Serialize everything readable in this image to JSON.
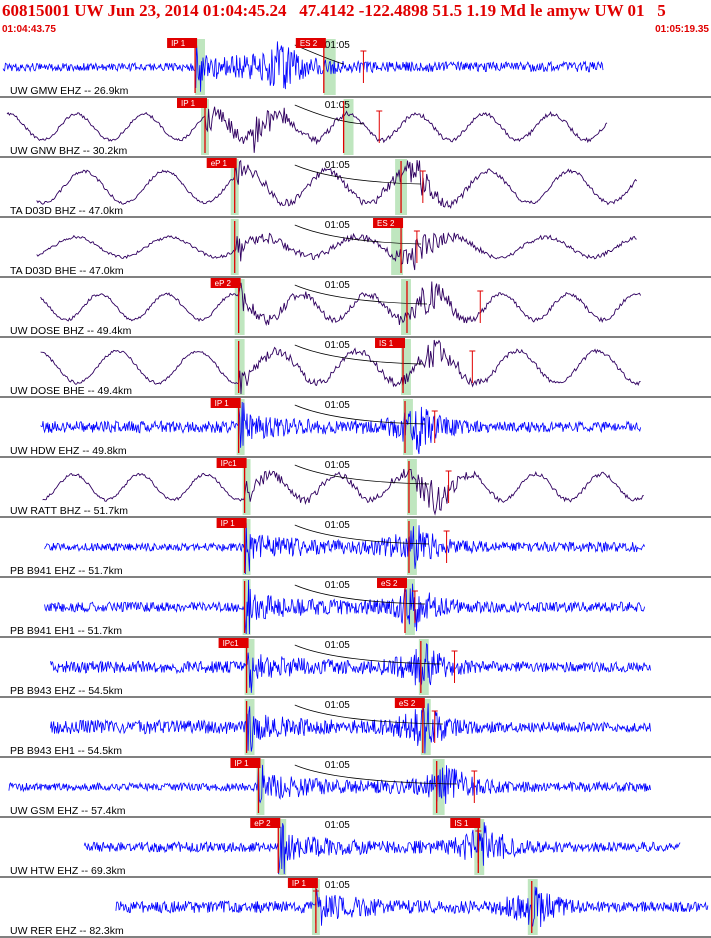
{
  "header": {
    "title": "60815001 UW Jun 23, 2014 01:04:45.24   47.4142 -122.4898 51.5 1.19 Md le amyw UW 01   5",
    "start_time": "01:04:43.75",
    "end_time": "01:05:19.35"
  },
  "colors": {
    "red": "#e00000",
    "blue": "#0000ff",
    "dark": "#300060",
    "green": "#bfe6bf",
    "panel_border": "#000000"
  },
  "chart_data": {
    "type": "line",
    "tick_label": "01:05",
    "x_unit": "seconds after 01:04:43.75",
    "x_range": [
      0,
      35.6
    ],
    "tick_time_s": 16.25,
    "channels": [
      {
        "label": "UW GMW EHZ -- 26.9km",
        "color": "blue",
        "style": "hf",
        "trace": [
          0,
          30.3
        ],
        "p_pick": "IP 1",
        "p_time": 9.7,
        "s_pick": "ES 2",
        "s_time": 16.2,
        "p_green": [
          9.7,
          10.2
        ],
        "s_green": [
          16.2,
          16.8
        ],
        "amp_mark": 18.2,
        "event_center": 14.0
      },
      {
        "label": "UW GNW BHZ -- 30.2km",
        "color": "dark",
        "style": "lf",
        "trace": [
          0.2,
          30.5
        ],
        "p_pick": "IP 1",
        "p_time": 10.2,
        "s_pick": "",
        "s_time": 17.2,
        "p_green": [
          10.0,
          10.4
        ],
        "s_green": [
          17.2,
          17.7
        ],
        "amp_mark": 19.0,
        "event_center": 13.0
      },
      {
        "label": "TA D03D BHZ -- 47.0km",
        "color": "dark",
        "style": "lf",
        "trace": [
          1.7,
          32.0
        ],
        "p_pick": "eP 1",
        "p_time": 11.7,
        "s_pick": "",
        "s_time": 20.1,
        "p_green": [
          11.5,
          11.9
        ],
        "s_green": [
          19.8,
          20.4
        ],
        "amp_mark": 21.2,
        "event_center": 20.9
      },
      {
        "label": "TA D03D BHE -- 47.0km",
        "color": "dark",
        "style": "lf",
        "trace": [
          1.7,
          32.0
        ],
        "p_pick": "",
        "p_time": 11.7,
        "s_pick": "ES 2",
        "s_time": 20.1,
        "p_green": [
          11.5,
          11.9
        ],
        "s_green": [
          19.6,
          20.2
        ],
        "amp_mark": 20.9,
        "event_center": 21.0
      },
      {
        "label": "UW DOSE BHZ -- 49.4km",
        "color": "dark",
        "style": "lf",
        "trace": [
          1.9,
          32.2
        ],
        "p_pick": "eP 2",
        "p_time": 11.9,
        "s_pick": "",
        "s_time": 20.4,
        "p_green": [
          11.7,
          12.2
        ],
        "s_green": [
          20.1,
          20.6
        ],
        "amp_mark": 24.1,
        "event_center": 21.5
      },
      {
        "label": "UW DOSE BHE -- 49.4km",
        "color": "dark",
        "style": "lf",
        "trace": [
          1.9,
          32.2
        ],
        "p_pick": "",
        "p_time": 11.9,
        "s_pick": "IS 1",
        "s_time": 20.2,
        "p_green": [
          11.7,
          12.2
        ],
        "s_green": [
          20.1,
          20.6
        ],
        "amp_mark": 23.7,
        "event_center": 21.8
      },
      {
        "label": "UW HDW EHZ -- 49.8km",
        "color": "blue",
        "style": "hf",
        "trace": [
          1.9,
          32.2
        ],
        "p_pick": "IP 1",
        "p_time": 11.9,
        "s_pick": "",
        "s_time": 20.3,
        "p_green": [
          11.8,
          12.2
        ],
        "s_green": [
          20.2,
          20.7
        ],
        "amp_mark": 21.8,
        "event_center": 21.0
      },
      {
        "label": "UW RATT BHZ -- 51.7km",
        "color": "dark",
        "style": "lf",
        "trace": [
          2.0,
          32.4
        ],
        "p_pick": "IPc1",
        "p_time": 12.2,
        "s_pick": "",
        "s_time": 20.5,
        "p_green": [
          12.1,
          12.5
        ],
        "s_green": [
          20.4,
          20.9
        ],
        "amp_mark": 22.5,
        "event_center": 21.6
      },
      {
        "label": "PB B941 EHZ -- 51.7km",
        "color": "blue",
        "style": "hf",
        "trace": [
          2.1,
          32.4
        ],
        "p_pick": "IP 1",
        "p_time": 12.2,
        "s_pick": "",
        "s_time": 20.5,
        "p_green": [
          12.1,
          12.5
        ],
        "s_green": [
          20.4,
          20.9
        ],
        "amp_mark": 22.4,
        "event_center": 20.8
      },
      {
        "label": "PB B941 EH1 -- 51.7km",
        "color": "blue",
        "style": "hf",
        "trace": [
          2.1,
          32.4
        ],
        "p_pick": "",
        "p_time": 12.2,
        "s_pick": "eS 2",
        "s_time": 20.3,
        "p_green": [
          12.1,
          12.5
        ],
        "s_green": [
          20.3,
          20.8
        ],
        "amp_mark": 20.8,
        "event_center": 20.8
      },
      {
        "label": "PB B943 EHZ -- 54.5km",
        "color": "blue",
        "style": "hf",
        "trace": [
          2.4,
          32.7
        ],
        "p_pick": "IPc1",
        "p_time": 12.3,
        "s_pick": "",
        "s_time": 21.1,
        "p_green": [
          12.2,
          12.7
        ],
        "s_green": [
          21.0,
          21.5
        ],
        "amp_mark": 22.8,
        "event_center": 21.2
      },
      {
        "label": "PB B943 EH1 -- 54.5km",
        "color": "blue",
        "style": "hf",
        "trace": [
          2.4,
          32.7
        ],
        "p_pick": "",
        "p_time": 12.3,
        "s_pick": "eS 2",
        "s_time": 21.2,
        "p_green": [
          12.2,
          12.7
        ],
        "s_green": [
          21.1,
          21.6
        ],
        "amp_mark": 21.8,
        "event_center": 21.3
      },
      {
        "label": "UW GSM EHZ -- 57.4km",
        "color": "blue",
        "style": "hf",
        "trace": [
          0.3,
          32.7
        ],
        "p_pick": "IP 1",
        "p_time": 12.9,
        "s_pick": "",
        "s_time": 21.9,
        "p_green": [
          12.8,
          13.2
        ],
        "s_green": [
          21.7,
          22.3
        ],
        "amp_mark": 23.8,
        "event_center": 22.5
      },
      {
        "label": "UW HTW EHZ -- 69.3km",
        "color": "blue",
        "style": "hf",
        "trace": [
          4.1,
          34.2
        ],
        "p_pick": "eP 2",
        "p_time": 13.9,
        "s_pick": "IS 1",
        "s_time": 24.0,
        "p_green": [
          13.9,
          14.3
        ],
        "s_green": [
          23.8,
          24.3
        ],
        "amp_mark": 24.0,
        "event_center": 24.3
      },
      {
        "label": "UW RER EHZ -- 82.3km",
        "color": "blue",
        "style": "hf",
        "trace": [
          5.7,
          35.6
        ],
        "p_pick": "IP 1",
        "p_time": 15.8,
        "s_pick": "",
        "s_time": 26.7,
        "p_green": [
          15.6,
          16.0
        ],
        "s_green": [
          26.5,
          27.0
        ],
        "amp_mark": 15.8,
        "event_center": 26.8
      }
    ]
  }
}
